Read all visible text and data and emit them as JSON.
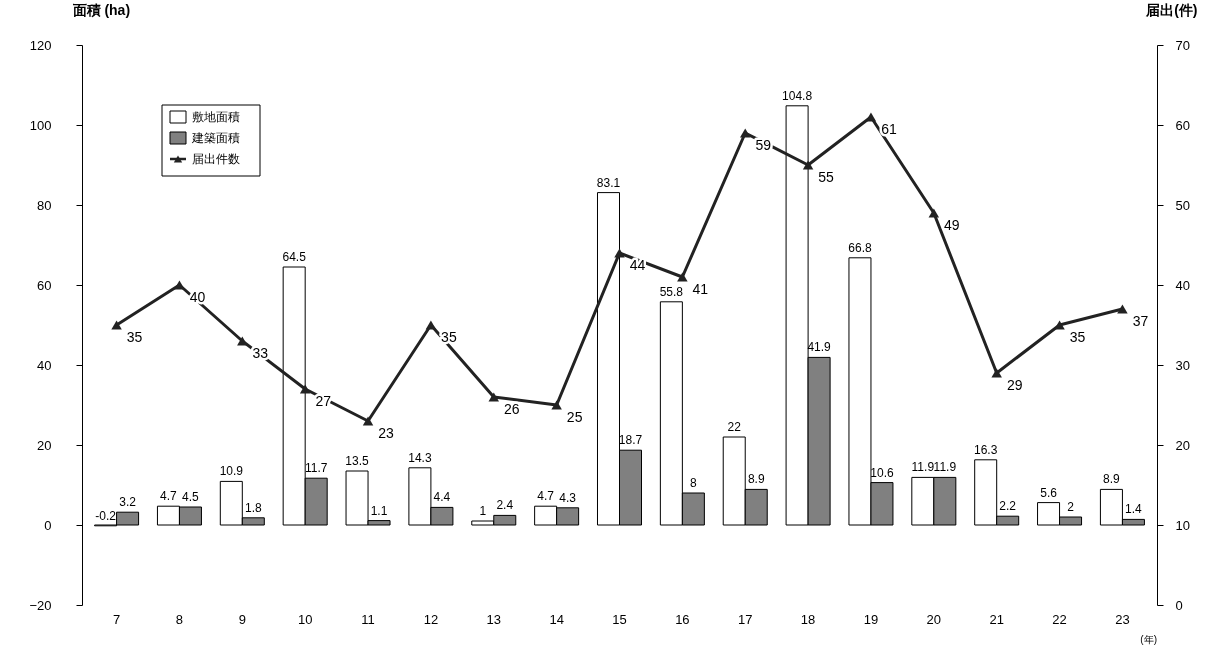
{
  "chart_data": {
    "type": "bar",
    "ylabel": "面積 (ha)",
    "y2label": "届出(件)",
    "xlabel": "(年)",
    "categories": [
      "7",
      "8",
      "9",
      "10",
      "11",
      "12",
      "13",
      "14",
      "15",
      "16",
      "17",
      "18",
      "19",
      "20",
      "21",
      "22",
      "23"
    ],
    "series": [
      {
        "name": "敷地面積",
        "color": "#ffffff",
        "values": [
          -0.2,
          4.7,
          10.9,
          64.5,
          13.5,
          14.3,
          1,
          4.7,
          83.1,
          55.8,
          22,
          104.8,
          66.8,
          11.9,
          16.3,
          5.6,
          8.9
        ]
      },
      {
        "name": "建築面積",
        "color": "#808080",
        "values": [
          3.2,
          4.5,
          1.8,
          11.7,
          1.1,
          4.4,
          2.4,
          4.3,
          18.7,
          8,
          8.9,
          41.9,
          10.6,
          11.9,
          2.2,
          2,
          1.4
        ]
      },
      {
        "name": "届出件数",
        "type": "line",
        "axis": "y2",
        "color": "#222222",
        "marker": "triangle",
        "values": [
          35,
          40,
          33,
          27,
          23,
          35,
          26,
          25,
          44,
          41,
          59,
          55,
          61,
          49,
          29,
          35,
          37
        ]
      }
    ],
    "ylim": [
      -20,
      120
    ],
    "yticks": [
      -20,
      0,
      20,
      40,
      60,
      80,
      100,
      120
    ],
    "y2lim": [
      0,
      70
    ],
    "y2ticks": [
      0,
      10,
      20,
      30,
      40,
      50,
      60,
      70
    ],
    "data_labels": true,
    "grid": false,
    "legend": "top left"
  }
}
